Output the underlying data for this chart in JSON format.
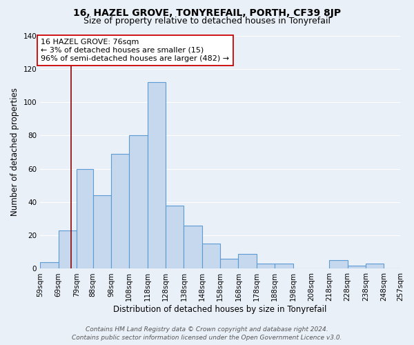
{
  "title": "16, HAZEL GROVE, TONYREFAIL, PORTH, CF39 8JP",
  "subtitle": "Size of property relative to detached houses in Tonyrefail",
  "xlabel": "Distribution of detached houses by size in Tonyrefail",
  "ylabel": "Number of detached properties",
  "bin_edges": [
    59,
    69,
    79,
    88,
    98,
    108,
    118,
    128,
    138,
    148,
    158,
    168,
    178,
    188,
    198,
    208,
    218,
    228,
    238,
    248,
    257
  ],
  "bin_counts": [
    4,
    23,
    60,
    44,
    69,
    80,
    112,
    38,
    26,
    15,
    6,
    9,
    3,
    3,
    0,
    0,
    5,
    2,
    3,
    0
  ],
  "bar_color": "#c5d8ed",
  "bar_edge_color": "#5b9bd5",
  "bar_edge_width": 0.8,
  "vline_x": 76,
  "vline_color": "#8b0000",
  "ylim": [
    0,
    140
  ],
  "yticks": [
    0,
    20,
    40,
    60,
    80,
    100,
    120,
    140
  ],
  "xtick_labels": [
    "59sqm",
    "69sqm",
    "79sqm",
    "88sqm",
    "98sqm",
    "108sqm",
    "118sqm",
    "128sqm",
    "138sqm",
    "148sqm",
    "158sqm",
    "168sqm",
    "178sqm",
    "188sqm",
    "198sqm",
    "208sqm",
    "218sqm",
    "228sqm",
    "238sqm",
    "248sqm",
    "257sqm"
  ],
  "annotation_line1": "16 HAZEL GROVE: 76sqm",
  "annotation_line2": "← 3% of detached houses are smaller (15)",
  "annotation_line3": "96% of semi-detached houses are larger (482) →",
  "annotation_box_color": "#ffffff",
  "annotation_box_edge": "#cc0000",
  "footer1": "Contains HM Land Registry data © Crown copyright and database right 2024.",
  "footer2": "Contains public sector information licensed under the Open Government Licence v3.0.",
  "bg_color": "#eaf0f8",
  "grid_color": "#ffffff",
  "title_fontsize": 10,
  "subtitle_fontsize": 9,
  "axis_label_fontsize": 8.5,
  "tick_fontsize": 7.5,
  "annotation_fontsize": 8,
  "footer_fontsize": 6.5
}
